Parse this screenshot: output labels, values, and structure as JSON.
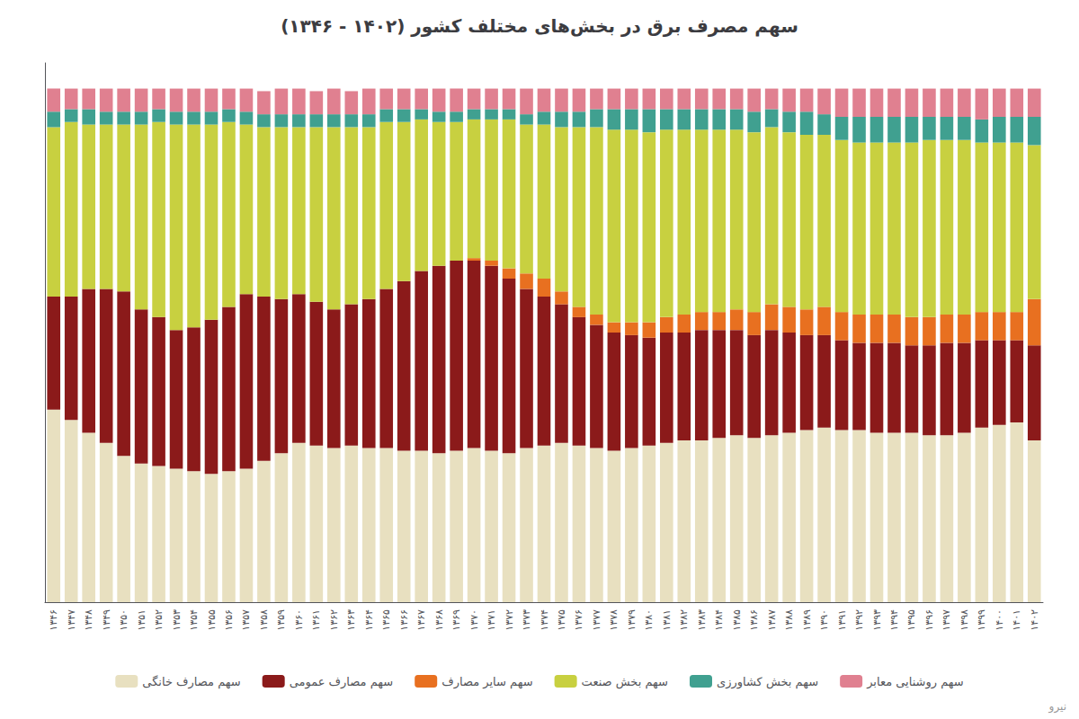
{
  "chart_data": {
    "type": "bar",
    "title": "سهم مصرف برق در بخش‌های مختلف کشور (۱۴۰۲ - ۱۳۴۶)",
    "categories": [
      "۱۳۴۶",
      "۱۳۴۷",
      "۱۳۴۸",
      "۱۳۴۹",
      "۱۳۵۰",
      "۱۳۵۱",
      "۱۳۵۲",
      "۱۳۵۳",
      "۱۳۵۴",
      "۱۳۵۵",
      "۱۳۵۶",
      "۱۳۵۷",
      "۱۳۵۸",
      "۱۳۵۹",
      "۱۳۶۰",
      "۱۳۶۱",
      "۱۳۶۲",
      "۱۳۶۳",
      "۱۳۶۴",
      "۱۳۶۵",
      "۱۳۶۶",
      "۱۳۶۷",
      "۱۳۶۸",
      "۱۳۶۹",
      "۱۳۷۰",
      "۱۳۷۱",
      "۱۳۷۲",
      "۱۳۷۳",
      "۱۳۷۴",
      "۱۳۷۵",
      "۱۳۷۶",
      "۱۳۷۷",
      "۱۳۷۸",
      "۱۳۷۹",
      "۱۳۸۰",
      "۱۳۸۱",
      "۱۳۸۲",
      "۱۳۸۳",
      "۱۳۸۴",
      "۱۳۸۵",
      "۱۳۸۶",
      "۱۳۸۷",
      "۱۳۸۸",
      "۱۳۸۹",
      "۱۳۹۰",
      "۱۳۹۱",
      "۱۳۹۲",
      "۱۳۹۳",
      "۱۳۹۴",
      "۱۳۹۵",
      "۱۳۹۶",
      "۱۳۹۷",
      "۱۳۹۸",
      "۱۳۹۹",
      "۱۴۰۰",
      "۱۴۰۱",
      "۱۴۰۲"
    ],
    "series": [
      {
        "name": "سهم مصارف خانگی",
        "color": "#e8e0c0",
        "values": [
          37.5,
          35.5,
          33.0,
          31.0,
          28.5,
          27.0,
          26.5,
          26.0,
          25.5,
          25.0,
          25.5,
          26.0,
          27.5,
          29.0,
          31.0,
          30.5,
          30.0,
          30.5,
          30.0,
          30.0,
          29.5,
          29.5,
          29.0,
          29.5,
          30.0,
          29.5,
          29.0,
          30.0,
          30.5,
          31.0,
          30.5,
          30.0,
          29.5,
          30.0,
          30.5,
          31.0,
          31.5,
          31.5,
          32.0,
          32.5,
          32.0,
          32.5,
          33.0,
          33.5,
          34.0,
          33.5,
          33.5,
          33.0,
          33.0,
          33.0,
          32.5,
          32.5,
          33.0,
          34.0,
          34.5,
          35.0,
          31.5
        ]
      },
      {
        "name": "سهم مصارف عمومی",
        "color": "#8b1a1a",
        "values": [
          22.0,
          24.0,
          28.0,
          30.0,
          32.0,
          30.0,
          29.0,
          27.0,
          28.0,
          30.0,
          32.0,
          34.0,
          32.0,
          30.0,
          29.0,
          28.0,
          27.0,
          27.5,
          29.0,
          31.0,
          33.0,
          35.0,
          36.5,
          37.0,
          36.5,
          36.0,
          34.0,
          31.0,
          29.0,
          27.0,
          25.0,
          24.0,
          23.0,
          22.0,
          21.0,
          21.5,
          21.0,
          21.5,
          21.0,
          20.5,
          20.0,
          20.5,
          19.5,
          18.5,
          18.0,
          17.5,
          17.0,
          17.5,
          17.5,
          17.0,
          17.5,
          18.0,
          17.5,
          17.0,
          16.5,
          16.0,
          18.5
        ]
      },
      {
        "name": "سهم سایر مصارف",
        "color": "#e87020",
        "values": [
          0.0,
          0.0,
          0.0,
          0.0,
          0.0,
          0.0,
          0.0,
          0.0,
          0.0,
          0.0,
          0.0,
          0.0,
          0.0,
          0.0,
          0.0,
          0.0,
          0.0,
          0.0,
          0.0,
          0.0,
          0.0,
          0.0,
          0.0,
          0.0,
          0.5,
          1.0,
          2.0,
          3.0,
          3.5,
          2.5,
          2.0,
          2.0,
          2.0,
          2.5,
          3.0,
          3.0,
          3.5,
          3.5,
          3.5,
          4.0,
          4.5,
          5.0,
          5.0,
          5.0,
          5.5,
          5.5,
          5.5,
          5.5,
          5.5,
          5.5,
          5.5,
          5.5,
          5.5,
          5.5,
          5.5,
          5.5,
          9.0
        ]
      },
      {
        "name": "سهم بخش صنعت",
        "color": "#c8d040",
        "values": [
          33.0,
          34.0,
          32.0,
          32.0,
          32.5,
          36.0,
          38.0,
          40.0,
          39.5,
          38.0,
          36.0,
          33.0,
          33.0,
          33.5,
          32.5,
          34.0,
          35.5,
          34.5,
          33.5,
          32.5,
          31.0,
          29.5,
          28.0,
          27.0,
          27.0,
          27.5,
          29.0,
          29.0,
          30.0,
          32.0,
          35.0,
          36.5,
          37.5,
          37.5,
          37.0,
          36.5,
          36.0,
          35.5,
          35.5,
          35.0,
          35.0,
          34.5,
          34.0,
          34.0,
          33.5,
          33.5,
          33.5,
          33.5,
          33.5,
          34.0,
          34.5,
          34.0,
          34.0,
          33.0,
          33.0,
          33.0,
          30.0
        ]
      },
      {
        "name": "سهم بخش کشاورزی",
        "color": "#40a090",
        "values": [
          3.0,
          2.5,
          3.0,
          2.5,
          2.5,
          2.5,
          2.5,
          2.5,
          2.5,
          2.5,
          2.5,
          2.5,
          2.5,
          2.5,
          2.5,
          2.5,
          2.5,
          2.5,
          2.5,
          2.5,
          2.5,
          2.0,
          2.0,
          2.0,
          2.0,
          2.0,
          2.0,
          2.0,
          2.5,
          3.0,
          3.0,
          3.5,
          4.0,
          4.0,
          4.5,
          4.0,
          4.0,
          4.0,
          4.0,
          4.0,
          4.0,
          3.5,
          4.0,
          4.5,
          4.0,
          4.5,
          5.0,
          5.0,
          5.0,
          5.0,
          4.5,
          4.5,
          4.5,
          4.5,
          5.0,
          5.0,
          5.5
        ]
      },
      {
        "name": "سهم روشنایی معابر",
        "color": "#e08090",
        "values": [
          4.5,
          4.0,
          4.0,
          4.5,
          4.5,
          4.5,
          4.0,
          4.5,
          4.5,
          4.5,
          4.0,
          4.5,
          4.5,
          5.0,
          5.0,
          4.5,
          5.0,
          4.5,
          5.0,
          4.0,
          4.0,
          4.0,
          4.5,
          4.5,
          4.0,
          4.0,
          4.0,
          5.0,
          4.5,
          4.5,
          4.5,
          4.0,
          4.0,
          4.0,
          4.0,
          4.0,
          4.0,
          4.0,
          4.0,
          4.0,
          4.5,
          4.0,
          4.5,
          4.5,
          5.0,
          5.5,
          5.5,
          5.5,
          5.5,
          5.5,
          5.5,
          5.5,
          5.5,
          6.0,
          5.5,
          5.5,
          5.5
        ]
      }
    ],
    "stacked": true,
    "ylim": [
      0,
      105
    ],
    "yticks": [],
    "tick_labels": "x",
    "grid": false,
    "legend": "bottom",
    "annotations": [
      "نیرو"
    ]
  }
}
